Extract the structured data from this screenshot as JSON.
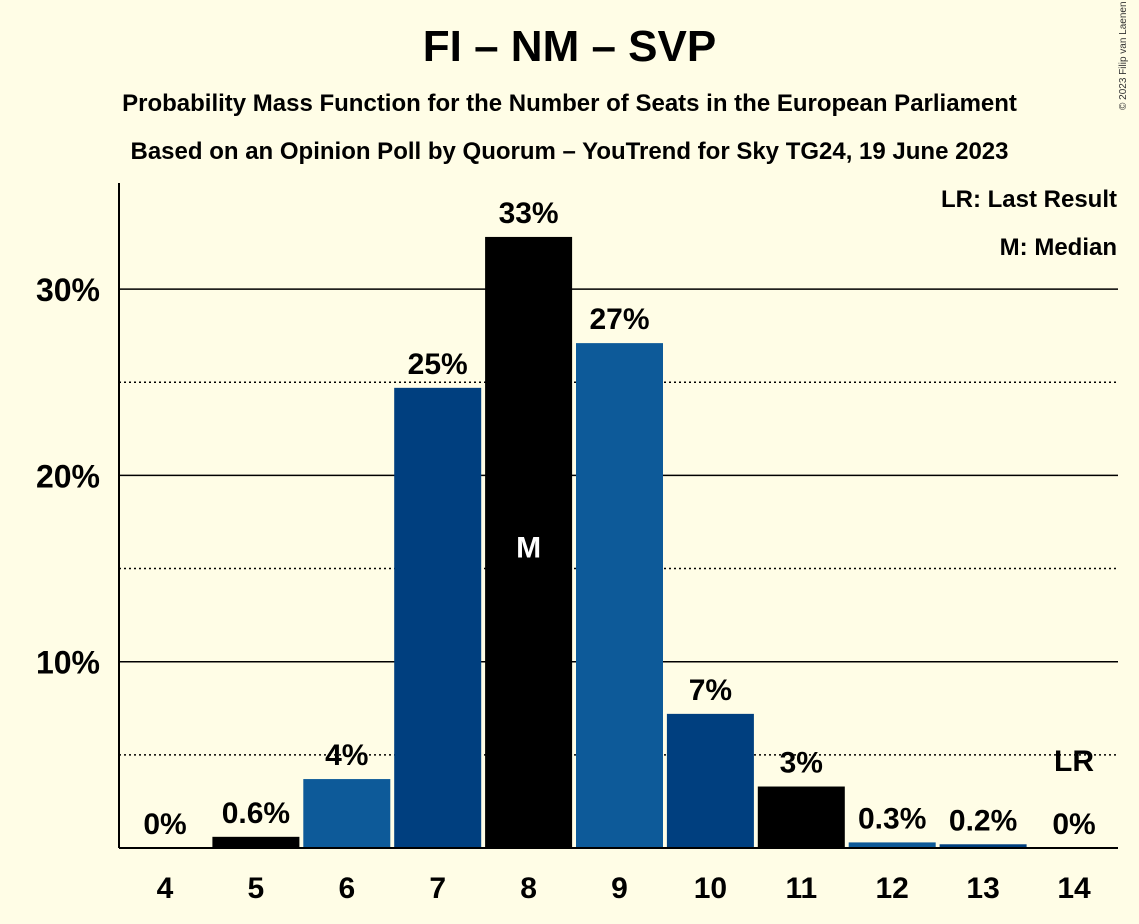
{
  "title": "FI – NM – SVP",
  "subtitle_1": "Probability Mass Function for the Number of Seats in the European Parliament",
  "subtitle_2": "Based on an Opinion Poll by Quorum – YouTrend for Sky TG24, 19 June 2023",
  "copyright": "© 2023 Filip van Laenen",
  "legend": {
    "last_result": "LR: Last Result",
    "median": "M: Median"
  },
  "colors": {
    "background": "#fffde6",
    "dark_blue": "#003f7f",
    "mid_blue": "#0d5a99",
    "black": "#000000"
  },
  "chart_data": {
    "type": "bar",
    "categories": [
      "4",
      "5",
      "6",
      "7",
      "8",
      "9",
      "10",
      "11",
      "12",
      "13",
      "14"
    ],
    "values": [
      0,
      0.6,
      3.7,
      24.7,
      32.8,
      27.1,
      7.2,
      3.3,
      0.3,
      0.2,
      0
    ],
    "labels": [
      "0%",
      "0.6%",
      "4%",
      "25%",
      "33%",
      "27%",
      "7%",
      "3%",
      "0.3%",
      "0.2%",
      "0%"
    ],
    "bar_colors": [
      "#000000",
      "#000000",
      "#0d5a99",
      "#003f7f",
      "#000000",
      "#0d5a99",
      "#003f7f",
      "#000000",
      "#0d5a99",
      "#003f7f",
      "#000000"
    ],
    "median_category": "8",
    "median_marker": "M",
    "last_result_category": "14",
    "last_result_marker": "LR",
    "yticks": [
      10,
      20,
      30
    ],
    "ytick_labels": [
      "10%",
      "20%",
      "30%"
    ],
    "minor_gridlines": [
      5,
      15,
      25
    ],
    "ylim": [
      0,
      35.5
    ],
    "xlabel": "",
    "ylabel": "",
    "grid": true
  }
}
